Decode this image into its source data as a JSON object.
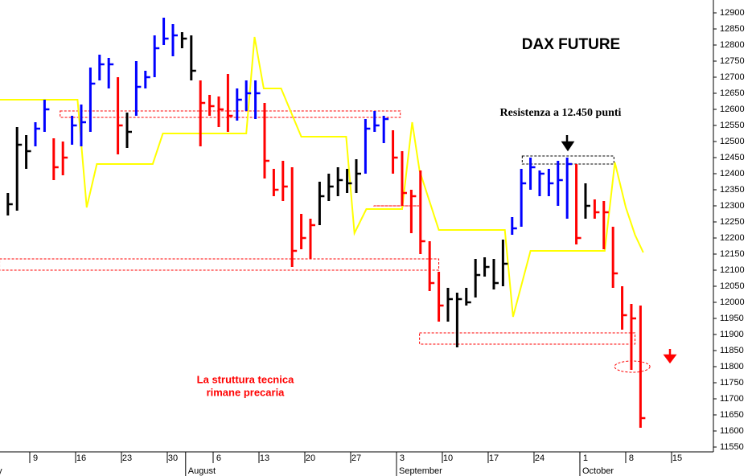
{
  "chart_data": {
    "type": "ohlc",
    "title": "DAX FUTURE",
    "annotations": [
      "Resistenza a 12.450 punti",
      "La struttura tecnica",
      "rimane precaria"
    ],
    "x": [
      -3,
      -2,
      -1,
      0,
      1,
      2,
      3,
      4,
      5,
      6,
      7,
      8,
      9,
      10,
      11,
      12,
      13,
      14,
      15,
      16,
      17,
      18,
      19,
      20,
      21,
      22,
      23,
      24,
      25,
      26,
      27,
      28,
      29,
      30,
      31,
      32,
      33,
      34,
      35,
      36,
      37,
      38,
      39,
      40,
      41,
      42,
      43,
      44,
      45,
      46,
      47,
      48,
      49,
      50,
      51,
      52,
      53,
      54,
      55,
      56,
      57,
      58,
      59,
      60,
      61,
      62,
      63,
      64,
      65,
      66
    ],
    "high": [
      12340,
      12545,
      12520,
      12560,
      12630,
      12510,
      12500,
      12580,
      12615,
      12730,
      12770,
      12760,
      12700,
      12590,
      12750,
      12720,
      12830,
      12885,
      12865,
      12840,
      12830,
      12690,
      12645,
      12640,
      12710,
      12665,
      12690,
      12690,
      12620,
      12415,
      12440,
      12420,
      12275,
      12260,
      12375,
      12400,
      12420,
      12415,
      12445,
      12570,
      12595,
      12580,
      12535,
      12470,
      12350,
      12410,
      12190,
      12095,
      12045,
      12030,
      12045,
      12135,
      12140,
      12135,
      12195,
      12265,
      12415,
      12450,
      12410,
      12415,
      12440,
      12450,
      12430,
      12370,
      12320,
      12315,
      12235,
      12050,
      11995,
      11990
    ],
    "low": [
      12270,
      12285,
      12415,
      12485,
      12530,
      12380,
      12395,
      12490,
      12485,
      12530,
      12690,
      12665,
      12460,
      12480,
      12580,
      12665,
      12700,
      12800,
      12765,
      12790,
      12690,
      12485,
      12580,
      12545,
      12530,
      12565,
      12595,
      12570,
      12385,
      12330,
      12315,
      12110,
      12165,
      12135,
      12240,
      12315,
      12330,
      12340,
      12340,
      12400,
      12530,
      12495,
      12400,
      12300,
      12215,
      12150,
      12035,
      11940,
      11940,
      11860,
      11990,
      12015,
      12080,
      12040,
      12050,
      12210,
      12235,
      12350,
      12330,
      12330,
      12300,
      12260,
      12180,
      12260,
      12260,
      12165,
      12045,
      11915,
      11790,
      11610
    ],
    "close": [
      12305,
      12490,
      12470,
      12540,
      12600,
      12420,
      12450,
      12550,
      12560,
      12680,
      12740,
      12740,
      12550,
      12530,
      12670,
      12700,
      12790,
      12820,
      12830,
      12820,
      12720,
      12620,
      12610,
      12600,
      12580,
      12630,
      12650,
      12650,
      12440,
      12350,
      12360,
      12160,
      12200,
      12240,
      12330,
      12360,
      12380,
      12370,
      12400,
      12540,
      12550,
      12570,
      12450,
      12340,
      12330,
      12190,
      12060,
      11990,
      12010,
      12010,
      12000,
      12085,
      12110,
      12060,
      12120,
      12230,
      12370,
      12420,
      12400,
      12370,
      12380,
      12430,
      12200,
      12300,
      12280,
      12280,
      12090,
      11960,
      11950,
      11640
    ],
    "bar_colors": [
      "#000000",
      "#000000",
      "#000000",
      "#0000ff",
      "#0000ff",
      "#ff0000",
      "#ff0000",
      "#0000ff",
      "#0000ff",
      "#0000ff",
      "#0000ff",
      "#0000ff",
      "#ff0000",
      "#000000",
      "#0000ff",
      "#0000ff",
      "#0000ff",
      "#0000ff",
      "#0000ff",
      "#000000",
      "#000000",
      "#ff0000",
      "#ff0000",
      "#ff0000",
      "#ff0000",
      "#0000ff",
      "#0000ff",
      "#0000ff",
      "#ff0000",
      "#ff0000",
      "#ff0000",
      "#ff0000",
      "#ff0000",
      "#ff0000",
      "#000000",
      "#000000",
      "#000000",
      "#000000",
      "#000000",
      "#0000ff",
      "#0000ff",
      "#0000ff",
      "#ff0000",
      "#ff0000",
      "#ff0000",
      "#ff0000",
      "#ff0000",
      "#ff0000",
      "#000000",
      "#000000",
      "#000000",
      "#000000",
      "#000000",
      "#000000",
      "#000000",
      "#0000ff",
      "#0000ff",
      "#0000ff",
      "#0000ff",
      "#0000ff",
      "#0000ff",
      "#0000ff",
      "#ff0000",
      "#000000",
      "#ff0000",
      "#ff0000",
      "#ff0000",
      "#ff0000",
      "#ff0000",
      "#ff0000"
    ],
    "line": {
      "color": "#ffff00",
      "x": [
        -3.9,
        4.6,
        5.6,
        6.7,
        12.8,
        13.9,
        23.0,
        23.9,
        24.9,
        26.8,
        29.0,
        33.9,
        34.8,
        36.1,
        40.0,
        41.1,
        41.9,
        44.0,
        51.2,
        52.1,
        54.0,
        62.1,
        63.2,
        64.4,
        65.4,
        66.3
      ],
      "values": [
        12630,
        12630,
        12295,
        12430,
        12430,
        12525,
        12525,
        12825,
        12665,
        12665,
        12515,
        12515,
        12215,
        12290,
        12290,
        12560,
        12410,
        12225,
        12225,
        11955,
        12160,
        12160,
        12435,
        12295,
        12210,
        12155
      ]
    },
    "zones": [
      {
        "x": [
          2.7,
          39.8
        ],
        "y": [
          12575,
          12595
        ],
        "color": "#ff0000"
      },
      {
        "x": [
          -3.9,
          44.0
        ],
        "y": [
          12100,
          12135
        ],
        "color": "#ff0000"
      },
      {
        "x": [
          36.9,
          41.8
        ],
        "y": [
          12300,
          12300
        ],
        "color": "#ff0000"
      },
      {
        "x": [
          41.9,
          65.4
        ],
        "y": [
          11870,
          11905
        ],
        "color": "#ff0000"
      },
      {
        "x": [
          53.1,
          63.1
        ],
        "y": [
          12430,
          12455
        ],
        "color": "#000000"
      }
    ],
    "ellipse": {
      "x": 65.1,
      "y": 11800,
      "color": "#ff0000"
    },
    "xlim": [
      -3.86,
      73.95
    ],
    "xticks": [
      {
        "value": 0,
        "label": "9"
      },
      {
        "value": 5,
        "label": "16"
      },
      {
        "value": 10,
        "label": "23"
      },
      {
        "value": 15,
        "label": "30"
      },
      {
        "value": 20,
        "label": "6"
      },
      {
        "value": 25,
        "label": "13"
      },
      {
        "value": 30,
        "label": "20"
      },
      {
        "value": 35,
        "label": "27"
      },
      {
        "value": 40,
        "label": "3"
      },
      {
        "value": 45,
        "label": "10"
      },
      {
        "value": 50,
        "label": "17"
      },
      {
        "value": 55,
        "label": "24"
      },
      {
        "value": 60,
        "label": "1"
      },
      {
        "value": 65,
        "label": "8"
      },
      {
        "value": 70,
        "label": "15"
      }
    ],
    "month_labels": [
      {
        "value": -5,
        "label": "July"
      },
      {
        "value": 17,
        "label": "August"
      },
      {
        "value": 40,
        "label": "September"
      },
      {
        "value": 60,
        "label": "October"
      }
    ],
    "ylim": [
      11535,
      12940
    ],
    "yticks": [
      11550,
      11600,
      11650,
      11700,
      11750,
      11800,
      11850,
      11900,
      11950,
      12000,
      12050,
      12100,
      12150,
      12200,
      12250,
      12300,
      12350,
      12400,
      12450,
      12500,
      12550,
      12600,
      12650,
      12700,
      12750,
      12800,
      12850,
      12900
    ]
  }
}
